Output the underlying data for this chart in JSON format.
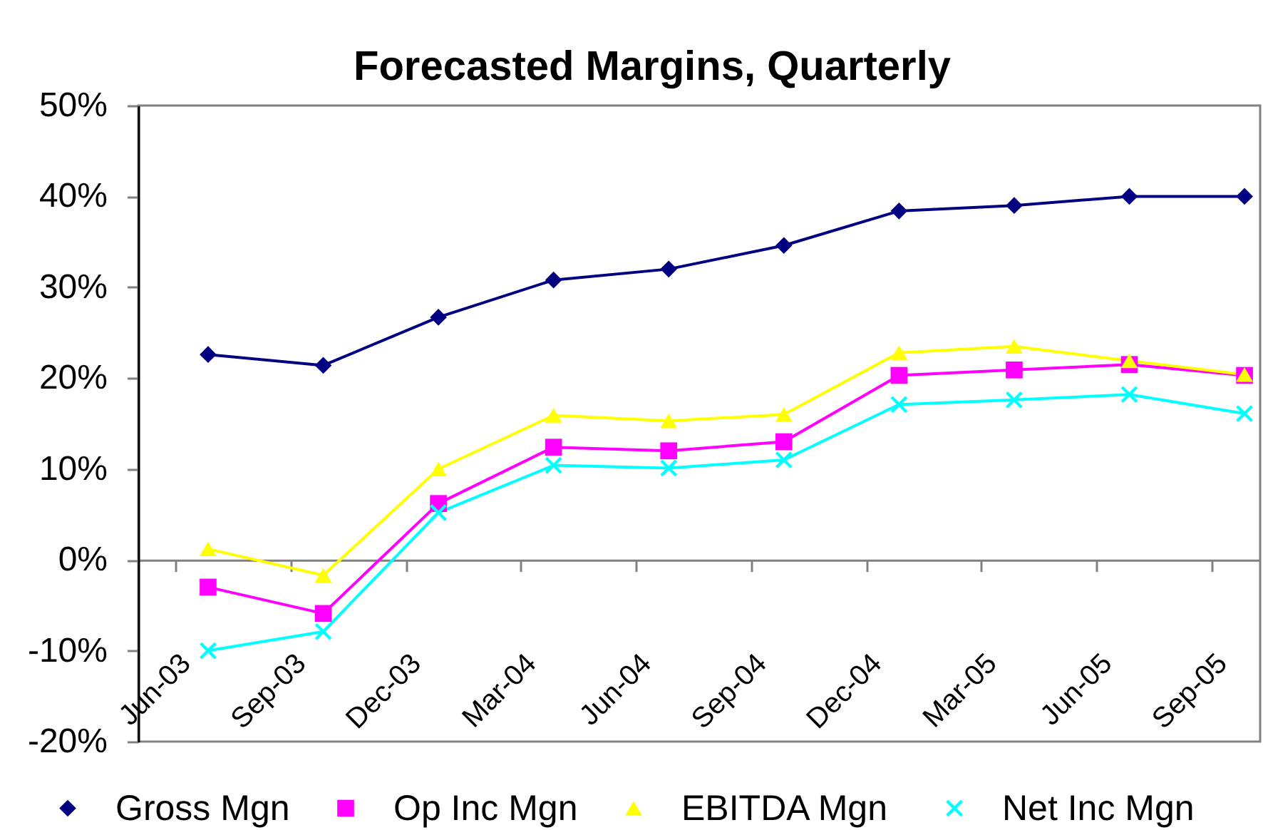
{
  "chart_data": {
    "type": "line",
    "title": "Forecasted Margins, Quarterly",
    "categories": [
      "Jun-03",
      "Sep-03",
      "Dec-03",
      "Mar-04",
      "Jun-04",
      "Sep-04",
      "Dec-04",
      "Mar-05",
      "Jun-05",
      "Sep-05"
    ],
    "series": [
      {
        "name": "Gross Mgn",
        "color": "#000080",
        "marker": "diamond",
        "values": [
          22.6,
          21.4,
          26.7,
          30.8,
          32.0,
          34.6,
          38.4,
          39.0,
          40.0,
          40.0
        ]
      },
      {
        "name": "Op Inc Mgn",
        "color": "#ff00ff",
        "marker": "square",
        "values": [
          -3.0,
          -5.9,
          6.2,
          12.4,
          12.0,
          13.0,
          20.3,
          20.9,
          21.5,
          20.3
        ]
      },
      {
        "name": "EBITDA  Mgn",
        "color": "#ffff00",
        "marker": "triangle",
        "values": [
          1.2,
          -1.7,
          10.0,
          15.9,
          15.3,
          16.0,
          22.8,
          23.5,
          21.9,
          20.4
        ]
      },
      {
        "name": "Net Inc Mgn",
        "color": "#00ffff",
        "marker": "cross",
        "values": [
          -10.0,
          -7.9,
          5.2,
          10.4,
          10.1,
          11.0,
          17.1,
          17.6,
          18.2,
          16.1
        ]
      }
    ],
    "ylim": [
      -20,
      50
    ],
    "yticks": [
      {
        "value": -20,
        "label": "-20%"
      },
      {
        "value": -10,
        "label": "-10%"
      },
      {
        "value": 0,
        "label": "0%"
      },
      {
        "value": 10,
        "label": "10%"
      },
      {
        "value": 20,
        "label": "20%"
      },
      {
        "value": 30,
        "label": "30%"
      },
      {
        "value": 40,
        "label": "40%"
      },
      {
        "value": 50,
        "label": "50%"
      }
    ],
    "legend": "bottom"
  }
}
